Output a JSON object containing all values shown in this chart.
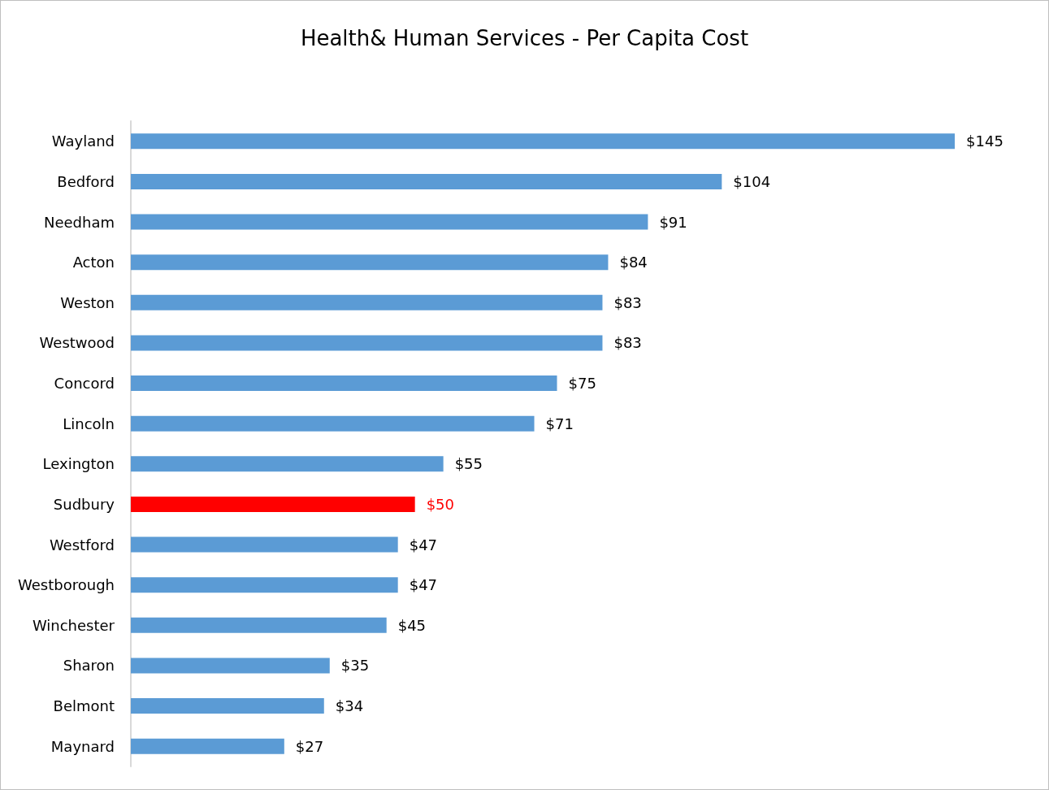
{
  "chart_data": {
    "type": "bar",
    "orientation": "horizontal",
    "title": "Health& Human Services - Per Capita Cost",
    "categories": [
      "Wayland",
      "Bedford",
      "Needham",
      "Acton",
      "Weston",
      "Westwood",
      "Concord",
      "Lincoln",
      "Lexington",
      "Sudbury",
      "Westford",
      "Westborough",
      "Winchester",
      "Sharon",
      "Belmont",
      "Maynard"
    ],
    "values": [
      145,
      104,
      91,
      84,
      83,
      83,
      75,
      71,
      55,
      50,
      47,
      47,
      45,
      35,
      34,
      27
    ],
    "value_labels": [
      "$145",
      "$104",
      "$91",
      "$84",
      "$83",
      "$83",
      "$75",
      "$71",
      "$55",
      "$50",
      "$47",
      "$47",
      "$45",
      "$35",
      "$34",
      "$27"
    ],
    "colors": [
      "#5b9bd5",
      "#5b9bd5",
      "#5b9bd5",
      "#5b9bd5",
      "#5b9bd5",
      "#5b9bd5",
      "#5b9bd5",
      "#5b9bd5",
      "#5b9bd5",
      "#ff0000",
      "#5b9bd5",
      "#5b9bd5",
      "#5b9bd5",
      "#5b9bd5",
      "#5b9bd5",
      "#5b9bd5"
    ],
    "grid": false
  }
}
